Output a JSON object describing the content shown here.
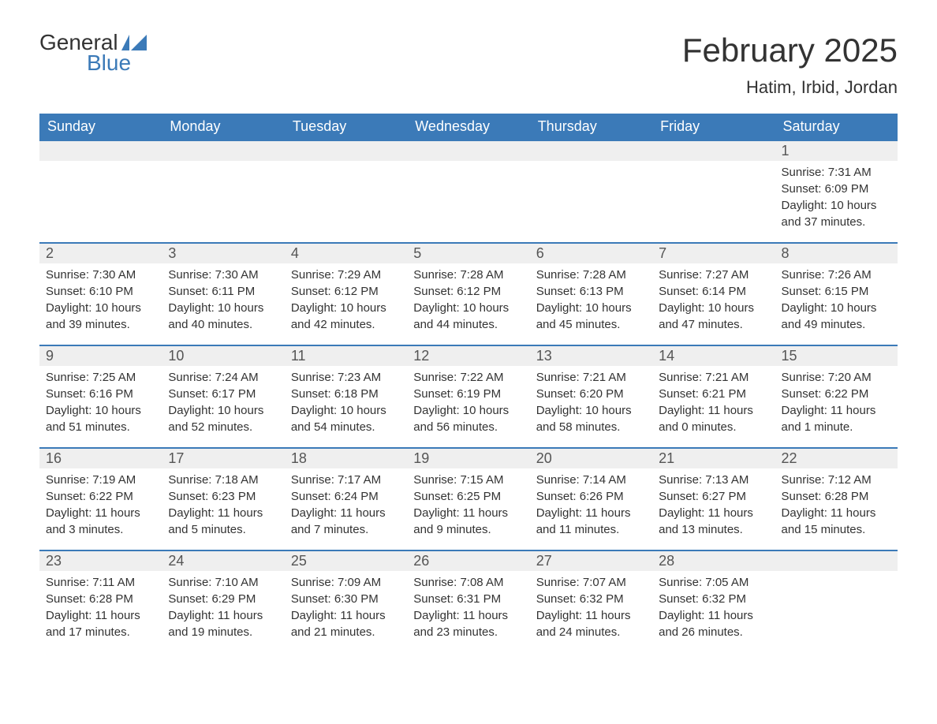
{
  "logo": {
    "word1": "General",
    "word2": "Blue",
    "icon_color": "#3b7ab8"
  },
  "title": "February 2025",
  "location": "Hatim, Irbid, Jordan",
  "colors": {
    "header_bg": "#3b7ab8",
    "header_text": "#ffffff",
    "daynum_bg": "#efefef",
    "row_border": "#3b7ab8",
    "body_text": "#333333",
    "page_bg": "#ffffff"
  },
  "fonts": {
    "family": "Arial",
    "title_size_pt": 32,
    "location_size_pt": 17,
    "dayheader_size_pt": 14,
    "daynum_size_pt": 14,
    "body_size_pt": 11
  },
  "layout": {
    "columns": 7,
    "rows": 5,
    "first_day_column_index": 6
  },
  "day_headers": [
    "Sunday",
    "Monday",
    "Tuesday",
    "Wednesday",
    "Thursday",
    "Friday",
    "Saturday"
  ],
  "weeks": [
    [
      null,
      null,
      null,
      null,
      null,
      null,
      {
        "n": "1",
        "sunrise": "Sunrise: 7:31 AM",
        "sunset": "Sunset: 6:09 PM",
        "daylight": "Daylight: 10 hours and 37 minutes."
      }
    ],
    [
      {
        "n": "2",
        "sunrise": "Sunrise: 7:30 AM",
        "sunset": "Sunset: 6:10 PM",
        "daylight": "Daylight: 10 hours and 39 minutes."
      },
      {
        "n": "3",
        "sunrise": "Sunrise: 7:30 AM",
        "sunset": "Sunset: 6:11 PM",
        "daylight": "Daylight: 10 hours and 40 minutes."
      },
      {
        "n": "4",
        "sunrise": "Sunrise: 7:29 AM",
        "sunset": "Sunset: 6:12 PM",
        "daylight": "Daylight: 10 hours and 42 minutes."
      },
      {
        "n": "5",
        "sunrise": "Sunrise: 7:28 AM",
        "sunset": "Sunset: 6:12 PM",
        "daylight": "Daylight: 10 hours and 44 minutes."
      },
      {
        "n": "6",
        "sunrise": "Sunrise: 7:28 AM",
        "sunset": "Sunset: 6:13 PM",
        "daylight": "Daylight: 10 hours and 45 minutes."
      },
      {
        "n": "7",
        "sunrise": "Sunrise: 7:27 AM",
        "sunset": "Sunset: 6:14 PM",
        "daylight": "Daylight: 10 hours and 47 minutes."
      },
      {
        "n": "8",
        "sunrise": "Sunrise: 7:26 AM",
        "sunset": "Sunset: 6:15 PM",
        "daylight": "Daylight: 10 hours and 49 minutes."
      }
    ],
    [
      {
        "n": "9",
        "sunrise": "Sunrise: 7:25 AM",
        "sunset": "Sunset: 6:16 PM",
        "daylight": "Daylight: 10 hours and 51 minutes."
      },
      {
        "n": "10",
        "sunrise": "Sunrise: 7:24 AM",
        "sunset": "Sunset: 6:17 PM",
        "daylight": "Daylight: 10 hours and 52 minutes."
      },
      {
        "n": "11",
        "sunrise": "Sunrise: 7:23 AM",
        "sunset": "Sunset: 6:18 PM",
        "daylight": "Daylight: 10 hours and 54 minutes."
      },
      {
        "n": "12",
        "sunrise": "Sunrise: 7:22 AM",
        "sunset": "Sunset: 6:19 PM",
        "daylight": "Daylight: 10 hours and 56 minutes."
      },
      {
        "n": "13",
        "sunrise": "Sunrise: 7:21 AM",
        "sunset": "Sunset: 6:20 PM",
        "daylight": "Daylight: 10 hours and 58 minutes."
      },
      {
        "n": "14",
        "sunrise": "Sunrise: 7:21 AM",
        "sunset": "Sunset: 6:21 PM",
        "daylight": "Daylight: 11 hours and 0 minutes."
      },
      {
        "n": "15",
        "sunrise": "Sunrise: 7:20 AM",
        "sunset": "Sunset: 6:22 PM",
        "daylight": "Daylight: 11 hours and 1 minute."
      }
    ],
    [
      {
        "n": "16",
        "sunrise": "Sunrise: 7:19 AM",
        "sunset": "Sunset: 6:22 PM",
        "daylight": "Daylight: 11 hours and 3 minutes."
      },
      {
        "n": "17",
        "sunrise": "Sunrise: 7:18 AM",
        "sunset": "Sunset: 6:23 PM",
        "daylight": "Daylight: 11 hours and 5 minutes."
      },
      {
        "n": "18",
        "sunrise": "Sunrise: 7:17 AM",
        "sunset": "Sunset: 6:24 PM",
        "daylight": "Daylight: 11 hours and 7 minutes."
      },
      {
        "n": "19",
        "sunrise": "Sunrise: 7:15 AM",
        "sunset": "Sunset: 6:25 PM",
        "daylight": "Daylight: 11 hours and 9 minutes."
      },
      {
        "n": "20",
        "sunrise": "Sunrise: 7:14 AM",
        "sunset": "Sunset: 6:26 PM",
        "daylight": "Daylight: 11 hours and 11 minutes."
      },
      {
        "n": "21",
        "sunrise": "Sunrise: 7:13 AM",
        "sunset": "Sunset: 6:27 PM",
        "daylight": "Daylight: 11 hours and 13 minutes."
      },
      {
        "n": "22",
        "sunrise": "Sunrise: 7:12 AM",
        "sunset": "Sunset: 6:28 PM",
        "daylight": "Daylight: 11 hours and 15 minutes."
      }
    ],
    [
      {
        "n": "23",
        "sunrise": "Sunrise: 7:11 AM",
        "sunset": "Sunset: 6:28 PM",
        "daylight": "Daylight: 11 hours and 17 minutes."
      },
      {
        "n": "24",
        "sunrise": "Sunrise: 7:10 AM",
        "sunset": "Sunset: 6:29 PM",
        "daylight": "Daylight: 11 hours and 19 minutes."
      },
      {
        "n": "25",
        "sunrise": "Sunrise: 7:09 AM",
        "sunset": "Sunset: 6:30 PM",
        "daylight": "Daylight: 11 hours and 21 minutes."
      },
      {
        "n": "26",
        "sunrise": "Sunrise: 7:08 AM",
        "sunset": "Sunset: 6:31 PM",
        "daylight": "Daylight: 11 hours and 23 minutes."
      },
      {
        "n": "27",
        "sunrise": "Sunrise: 7:07 AM",
        "sunset": "Sunset: 6:32 PM",
        "daylight": "Daylight: 11 hours and 24 minutes."
      },
      {
        "n": "28",
        "sunrise": "Sunrise: 7:05 AM",
        "sunset": "Sunset: 6:32 PM",
        "daylight": "Daylight: 11 hours and 26 minutes."
      },
      null
    ]
  ]
}
